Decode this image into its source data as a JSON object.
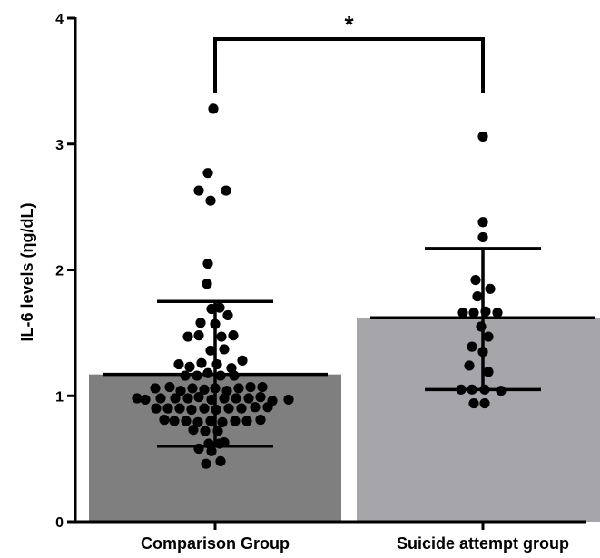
{
  "chart_data": {
    "type": "bar",
    "ylabel": "IL-6 levels (ηg/dL)",
    "ylim": [
      0,
      4
    ],
    "yticks": [
      0,
      1,
      2,
      3,
      4
    ],
    "categories": [
      "Comparison Group",
      "Suicide attempt group"
    ],
    "values": [
      1.17,
      1.62
    ],
    "error_low": [
      0.6,
      1.05
    ],
    "error_high": [
      1.75,
      2.17
    ],
    "bar_colors": [
      "#7f7f7f",
      "#a5a5aa"
    ],
    "significance": "*",
    "points": [
      [
        {
          "x": -0.02,
          "y": 3.28
        },
        {
          "x": -0.08,
          "y": 2.77
        },
        {
          "x": -0.18,
          "y": 2.63
        },
        {
          "x": 0.12,
          "y": 2.63
        },
        {
          "x": -0.05,
          "y": 2.55
        },
        {
          "x": -0.08,
          "y": 2.05
        },
        {
          "x": -0.09,
          "y": 1.89
        },
        {
          "x": -0.04,
          "y": 1.69
        },
        {
          "x": 0.05,
          "y": 1.7
        },
        {
          "x": 0.14,
          "y": 1.64
        },
        {
          "x": -0.16,
          "y": 1.58
        },
        {
          "x": 0.0,
          "y": 1.57
        },
        {
          "x": -0.3,
          "y": 1.47
        },
        {
          "x": -0.18,
          "y": 1.48
        },
        {
          "x": 0.07,
          "y": 1.47
        },
        {
          "x": 0.2,
          "y": 1.48
        },
        {
          "x": -0.05,
          "y": 1.36
        },
        {
          "x": 0.1,
          "y": 1.37
        },
        {
          "x": -0.4,
          "y": 1.25
        },
        {
          "x": -0.28,
          "y": 1.23
        },
        {
          "x": -0.15,
          "y": 1.26
        },
        {
          "x": 0.02,
          "y": 1.25
        },
        {
          "x": 0.18,
          "y": 1.22
        },
        {
          "x": 0.3,
          "y": 1.28
        },
        {
          "x": -0.33,
          "y": 1.16
        },
        {
          "x": -0.2,
          "y": 1.16
        },
        {
          "x": -0.08,
          "y": 1.18
        },
        {
          "x": 0.06,
          "y": 1.16
        },
        {
          "x": 0.21,
          "y": 1.16
        },
        {
          "x": -0.66,
          "y": 1.06
        },
        {
          "x": -0.5,
          "y": 1.07
        },
        {
          "x": -0.38,
          "y": 1.04
        },
        {
          "x": -0.25,
          "y": 1.06
        },
        {
          "x": -0.12,
          "y": 1.05
        },
        {
          "x": 0.0,
          "y": 1.06
        },
        {
          "x": 0.13,
          "y": 1.04
        },
        {
          "x": 0.26,
          "y": 1.06
        },
        {
          "x": 0.39,
          "y": 1.07
        },
        {
          "x": 0.52,
          "y": 1.07
        },
        {
          "x": -0.86,
          "y": 0.98
        },
        {
          "x": -0.77,
          "y": 0.97
        },
        {
          "x": -0.6,
          "y": 0.98
        },
        {
          "x": -0.44,
          "y": 0.98
        },
        {
          "x": -0.3,
          "y": 0.98
        },
        {
          "x": -0.18,
          "y": 0.99
        },
        {
          "x": -0.04,
          "y": 0.97
        },
        {
          "x": 0.1,
          "y": 0.98
        },
        {
          "x": 0.23,
          "y": 0.98
        },
        {
          "x": 0.37,
          "y": 0.98
        },
        {
          "x": 0.5,
          "y": 0.99
        },
        {
          "x": 0.63,
          "y": 0.96
        },
        {
          "x": 0.81,
          "y": 0.97
        },
        {
          "x": -0.65,
          "y": 0.9
        },
        {
          "x": -0.52,
          "y": 0.9
        },
        {
          "x": -0.39,
          "y": 0.9
        },
        {
          "x": -0.26,
          "y": 0.89
        },
        {
          "x": -0.12,
          "y": 0.9
        },
        {
          "x": 0.01,
          "y": 0.89
        },
        {
          "x": 0.15,
          "y": 0.9
        },
        {
          "x": 0.29,
          "y": 0.9
        },
        {
          "x": 0.44,
          "y": 0.91
        },
        {
          "x": 0.58,
          "y": 0.91
        },
        {
          "x": -0.56,
          "y": 0.81
        },
        {
          "x": -0.45,
          "y": 0.8
        },
        {
          "x": -0.32,
          "y": 0.8
        },
        {
          "x": -0.19,
          "y": 0.79
        },
        {
          "x": -0.05,
          "y": 0.8
        },
        {
          "x": 0.08,
          "y": 0.79
        },
        {
          "x": 0.22,
          "y": 0.8
        },
        {
          "x": 0.35,
          "y": 0.8
        },
        {
          "x": 0.5,
          "y": 0.81
        },
        {
          "x": -0.24,
          "y": 0.73
        },
        {
          "x": -0.11,
          "y": 0.72
        },
        {
          "x": 0.03,
          "y": 0.72
        },
        {
          "x": -0.07,
          "y": 0.62
        },
        {
          "x": 0.05,
          "y": 0.62
        },
        {
          "x": 0.1,
          "y": 0.63
        },
        {
          "x": -0.18,
          "y": 0.58
        },
        {
          "x": -0.04,
          "y": 0.56
        },
        {
          "x": -0.1,
          "y": 0.46
        },
        {
          "x": 0.06,
          "y": 0.48
        }
      ],
      [
        {
          "x": 0.0,
          "y": 3.06
        },
        {
          "x": 0.0,
          "y": 2.38
        },
        {
          "x": 0.0,
          "y": 2.26
        },
        {
          "x": -0.08,
          "y": 1.92
        },
        {
          "x": 0.08,
          "y": 1.85
        },
        {
          "x": -0.06,
          "y": 1.79
        },
        {
          "x": -0.22,
          "y": 1.66
        },
        {
          "x": -0.1,
          "y": 1.66
        },
        {
          "x": 0.03,
          "y": 1.67
        },
        {
          "x": 0.16,
          "y": 1.66
        },
        {
          "x": -0.02,
          "y": 1.55
        },
        {
          "x": 0.06,
          "y": 1.47
        },
        {
          "x": -0.12,
          "y": 1.39
        },
        {
          "x": 0.0,
          "y": 1.35
        },
        {
          "x": -0.15,
          "y": 1.24
        },
        {
          "x": 0.06,
          "y": 1.19
        },
        {
          "x": -0.24,
          "y": 1.05
        },
        {
          "x": -0.12,
          "y": 1.05
        },
        {
          "x": 0.02,
          "y": 1.05
        },
        {
          "x": 0.2,
          "y": 1.04
        },
        {
          "x": -0.1,
          "y": 0.94
        },
        {
          "x": 0.02,
          "y": 0.94
        }
      ]
    ]
  }
}
